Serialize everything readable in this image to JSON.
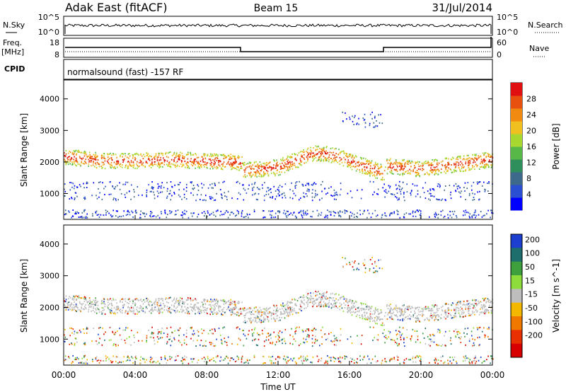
{
  "header": {
    "station": "Adak East (fitACF)",
    "beam": "Beam 15",
    "date": "31/Jul/2014"
  },
  "nsky_panel": {
    "left_label": "N.Sky",
    "right_label": "N.Search",
    "left_ticks": [
      "10^5",
      "10^0"
    ],
    "right_ticks": [
      "10^5",
      "10^0"
    ]
  },
  "freq_panel": {
    "left_label_line1": "Freq.",
    "left_label_line2": "[MHz]",
    "right_label": "Nave",
    "left_ticks": [
      "18",
      "8"
    ],
    "right_ticks": [
      "60",
      "0"
    ]
  },
  "cpid_panel": {
    "label": "CPID",
    "text": "normalsound (fast) -157 RF"
  },
  "time_axis": {
    "label": "Time UT",
    "ticks": [
      "00:00",
      "04:00",
      "08:00",
      "12:00",
      "16:00",
      "20:00",
      "00:00"
    ]
  },
  "colors": {
    "power": [
      "#0000ff",
      "#2a4fd0",
      "#3d6a8a",
      "#2f8f5c",
      "#57b848",
      "#a8d830",
      "#f0c020",
      "#f08a10",
      "#e85010",
      "#e01010"
    ],
    "velocity": [
      "#1c3fd0",
      "#1f6e6e",
      "#3da03d",
      "#8ddc3c",
      "#bdbdbd",
      "#f5b800",
      "#f07800",
      "#e83000",
      "#d80000"
    ]
  },
  "chart_data": [
    {
      "type": "heatmap",
      "title": "Power",
      "ylabel": "Slant Range [km]",
      "ylim": [
        180,
        4600
      ],
      "x_hours": [
        0,
        24
      ],
      "yticks": [
        "1000",
        "2000",
        "3000",
        "4000"
      ],
      "colorbar_label": "Power [dB]",
      "colorbar_ticks": [
        "4",
        "8",
        "12",
        "16",
        "20",
        "24",
        "28"
      ],
      "echo_band_center_km": [
        {
          "t": 0,
          "r": 2200
        },
        {
          "t": 2,
          "r": 2050
        },
        {
          "t": 4,
          "r": 2050
        },
        {
          "t": 6,
          "r": 2100
        },
        {
          "t": 8,
          "r": 2050
        },
        {
          "t": 10,
          "r": 2000
        },
        {
          "t": 10.01,
          "r": 1750
        },
        {
          "t": 12,
          "r": 1850
        },
        {
          "t": 14,
          "r": 2300
        },
        {
          "t": 15,
          "r": 2250
        },
        {
          "t": 16,
          "r": 2050
        },
        {
          "t": 18,
          "r": 1650
        },
        {
          "t": 18.01,
          "r": 1900
        },
        {
          "t": 20,
          "r": 1800
        },
        {
          "t": 22,
          "r": 1950
        },
        {
          "t": 24,
          "r": 2100
        }
      ]
    },
    {
      "type": "heatmap",
      "title": "Velocity",
      "ylabel": "Slant Range [km]",
      "ylim": [
        180,
        4600
      ],
      "x_hours": [
        0,
        24
      ],
      "yticks": [
        "1000",
        "2000",
        "3000",
        "4000"
      ],
      "colorbar_label": "Velocity [m s^-1]",
      "colorbar_ticks": [
        "200",
        "100",
        "50",
        "15",
        "-15",
        "-50",
        "-100",
        "-200"
      ]
    }
  ]
}
